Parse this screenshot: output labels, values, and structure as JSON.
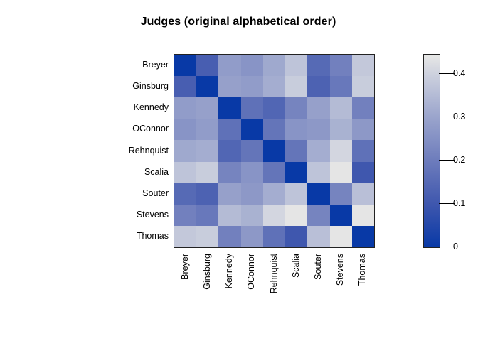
{
  "chart_data": {
    "type": "heatmap",
    "title": "Judges (original alphabetical order)",
    "row_labels": [
      "Breyer",
      "Ginsburg",
      "Kennedy",
      "OConnor",
      "Rehnquist",
      "Scalia",
      "Souter",
      "Stevens",
      "Thomas"
    ],
    "col_labels": [
      "Breyer",
      "Ginsburg",
      "Kennedy",
      "OConnor",
      "Rehnquist",
      "Scalia",
      "Souter",
      "Stevens",
      "Thomas"
    ],
    "matrix": [
      [
        0,
        0.12,
        0.28,
        0.26,
        0.31,
        0.37,
        0.15,
        0.21,
        0.38
      ],
      [
        0.12,
        0,
        0.29,
        0.28,
        0.32,
        0.39,
        0.13,
        0.19,
        0.39
      ],
      [
        0.28,
        0.29,
        0,
        0.17,
        0.14,
        0.22,
        0.29,
        0.35,
        0.21
      ],
      [
        0.26,
        0.28,
        0.17,
        0,
        0.18,
        0.26,
        0.27,
        0.33,
        0.27
      ],
      [
        0.31,
        0.32,
        0.14,
        0.18,
        0,
        0.18,
        0.32,
        0.41,
        0.17
      ],
      [
        0.37,
        0.39,
        0.22,
        0.26,
        0.18,
        0,
        0.37,
        0.44,
        0.1
      ],
      [
        0.15,
        0.13,
        0.29,
        0.27,
        0.32,
        0.37,
        0,
        0.22,
        0.36
      ],
      [
        0.21,
        0.19,
        0.35,
        0.33,
        0.41,
        0.44,
        0.22,
        0,
        0.44
      ],
      [
        0.38,
        0.39,
        0.21,
        0.27,
        0.17,
        0.1,
        0.36,
        0.44,
        0
      ]
    ],
    "colorbar": {
      "tick_labels": [
        "0",
        "0.1",
        "0.2",
        "0.3",
        "0.4"
      ],
      "tick_values": [
        0,
        0.1,
        0.2,
        0.3,
        0.4
      ],
      "vmin": 0,
      "vmax": 0.445,
      "position": "right"
    },
    "colormap": {
      "values": [
        0,
        0.1,
        0.2,
        0.3,
        0.4,
        0.445
      ],
      "colors": [
        "#0839a6",
        "#3f57ae",
        "#6d7cbc",
        "#9aa4cc",
        "#cdd1de",
        "#e8e8e6"
      ]
    },
    "grid": false,
    "legend_position": "right"
  }
}
